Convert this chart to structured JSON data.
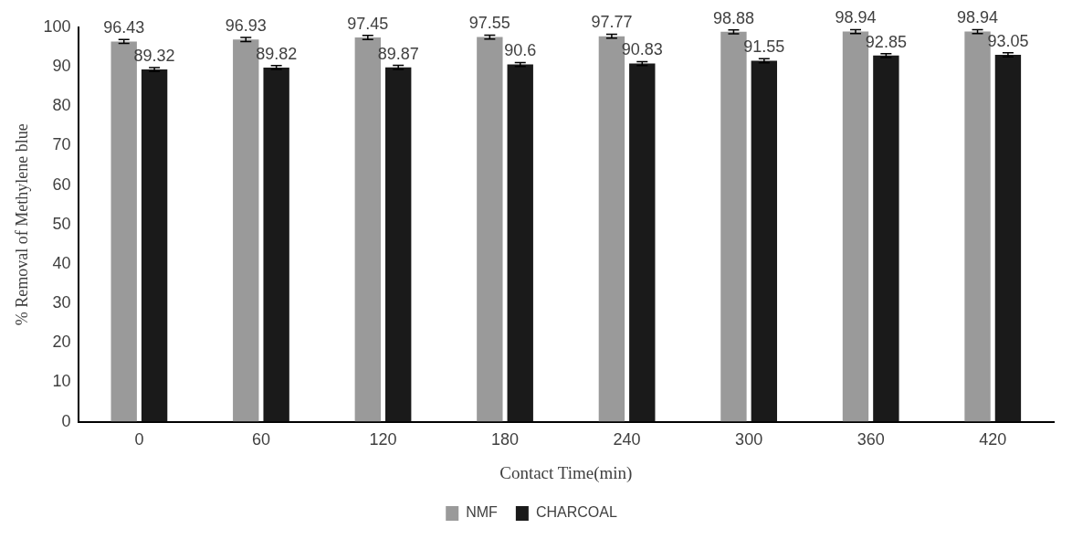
{
  "chart_data": {
    "type": "bar",
    "xlabel": "Contact Time(min)",
    "ylabel": "% Removal of Methylene blue",
    "categories": [
      "0",
      "60",
      "120",
      "180",
      "240",
      "300",
      "360",
      "420"
    ],
    "series": [
      {
        "name": "NMF",
        "color": "#9a9a9a",
        "values": [
          96.43,
          96.93,
          97.45,
          97.55,
          97.77,
          98.88,
          98.94,
          98.94
        ],
        "errors": [
          0.5,
          0.5,
          0.5,
          0.5,
          0.5,
          0.5,
          0.5,
          0.5
        ]
      },
      {
        "name": "CHARCOAL",
        "color": "#1a1a1a",
        "values": [
          89.32,
          89.82,
          89.87,
          90.6,
          90.83,
          91.55,
          92.85,
          93.05
        ],
        "errors": [
          0.5,
          0.5,
          0.5,
          0.5,
          0.5,
          0.5,
          0.5,
          0.5
        ]
      }
    ],
    "ylim": [
      0,
      100
    ],
    "yticks": [
      0,
      10,
      20,
      30,
      40,
      50,
      60,
      70,
      80,
      90,
      100
    ],
    "data_labels": true,
    "grid": false,
    "legend": "bottom"
  }
}
